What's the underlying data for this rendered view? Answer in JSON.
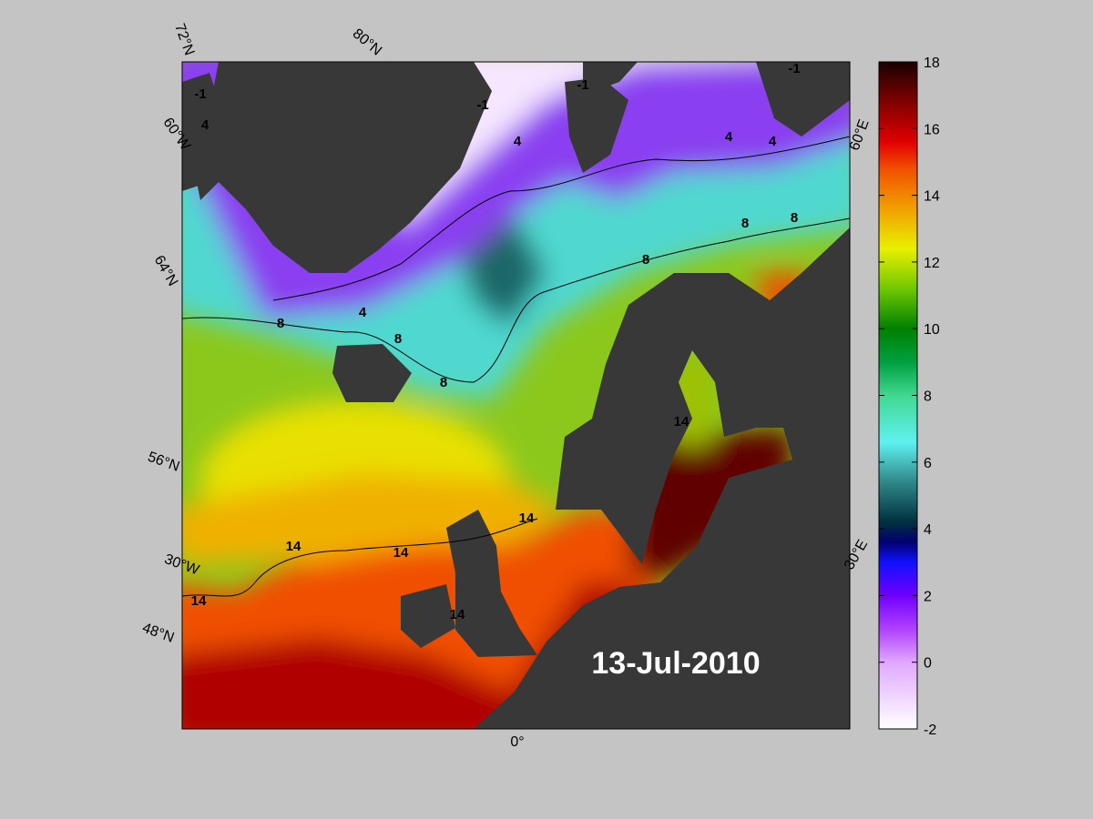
{
  "map": {
    "date": "13-Jul-2010",
    "graticule_labels": [
      "72°N",
      "80°N",
      "60°W",
      "64°N",
      "56°N",
      "30°W",
      "48°N",
      "0°",
      "30°E",
      "60°E"
    ],
    "contour_labels": [
      "-1",
      "-1",
      "-1",
      "-1",
      "4",
      "4",
      "4",
      "4",
      "4",
      "8",
      "8",
      "8",
      "8",
      "8",
      "8",
      "14",
      "14",
      "14",
      "14",
      "14",
      "14"
    ],
    "colorbar": {
      "range": [
        -2,
        18
      ],
      "ticks": [
        -2,
        0,
        2,
        4,
        6,
        8,
        10,
        12,
        14,
        16,
        18
      ]
    }
  }
}
